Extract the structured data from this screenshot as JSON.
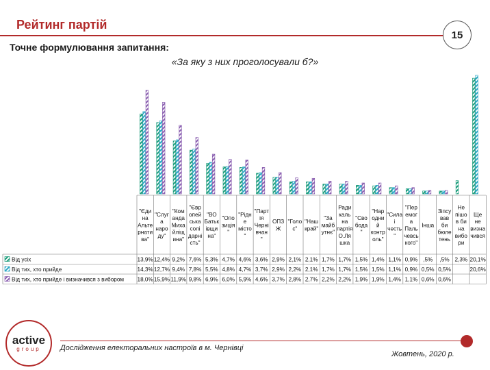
{
  "header": {
    "title": "Рейтинг партій",
    "page_number": "15"
  },
  "question": {
    "label": "Точне формулювання запитання:",
    "text": "«За яку з них проголосували б?»"
  },
  "footer": {
    "logo_main": "active",
    "logo_sub": "group",
    "study": "Дослідження електоральних настроїв в  м. Чернівці",
    "date": "Жовтень, 2020 р."
  },
  "colors": {
    "accent": "#b22a2a",
    "series1": "#1a9c7a",
    "series2": "#2aa6c4",
    "series3": "#8a5fb0"
  },
  "chart_data": {
    "type": "bar",
    "categories": [
      "\"Єдина Альтернатива\"",
      "\"Слуга народу\"",
      "\"Команда Михайліщина\"",
      "\"Європейська солідарність\"",
      "\"ВО Батьківщина\"",
      "\"Опозиція\"",
      "\"Рідне місто\"",
      "\"Партія Чернівчан\"",
      "ОПЗЖ",
      "\"Голос\"",
      "\"Наш край\"",
      "\"За майбутнє\"",
      "Радикальна партія О.Ляшка",
      "\"Свобода\"",
      "\"Народний контроль\"",
      "\"Сила і честь\"",
      "\"Перемога Пальчевського\"",
      "Інша",
      "Зіпсував би бюлетень",
      "Не пішов би на вибори",
      "Ще не визначився"
    ],
    "category_lines": [
      [
        "\"Єди",
        "на",
        "Альте",
        "рнати",
        "ва\""
      ],
      [
        "\"Слуг",
        "а",
        "наро",
        "ду\""
      ],
      [
        "\"Ком",
        "анда",
        "Миха",
        "йліщ",
        "ина\""
      ],
      [
        "\"Євр",
        "опей",
        "ська",
        "солі",
        "дарні",
        "сть\""
      ],
      [
        "\"ВО",
        "Батьк",
        "івщи",
        "на\""
      ],
      [
        "\"Опо",
        "зиція",
        "\""
      ],
      [
        "\"Рідн",
        "е",
        "місто",
        "\""
      ],
      [
        "\"Парт",
        "ія",
        "Черні",
        "вчан",
        "\""
      ],
      [
        "ОПЗ",
        "Ж"
      ],
      [
        "\"Голо",
        "с\""
      ],
      [
        "\"Наш",
        "край\""
      ],
      [
        "\"За",
        "майб",
        "утнє\""
      ],
      [
        "Ради",
        "каль",
        "на",
        "партія",
        "О.Ля",
        "шка"
      ],
      [
        "\"Сво",
        "бода",
        "\""
      ],
      [
        "\"Нар",
        "одни",
        "й",
        "контр",
        "оль\""
      ],
      [
        "\"Сила",
        "і",
        "честь",
        "\""
      ],
      [
        "\"Пер",
        "емог",
        "а",
        "Паль",
        "чевсь",
        "кого\""
      ],
      [
        "Інша"
      ],
      [
        "Зіпсу",
        "вав",
        "би",
        "бюле",
        "тень"
      ],
      [
        "Не",
        "пішо",
        "в би",
        "на",
        "вибо",
        "ри"
      ],
      [
        "Ще",
        "не",
        "визна",
        "чився"
      ]
    ],
    "series": [
      {
        "name": "Від усіх",
        "values": [
          13.9,
          12.4,
          9.2,
          7.6,
          5.3,
          4.7,
          4.6,
          3.6,
          2.9,
          2.1,
          2.1,
          1.7,
          1.7,
          1.5,
          1.4,
          1.1,
          0.9,
          0.5,
          0.5,
          2.3,
          20.1
        ],
        "labels": [
          "13,9%",
          "12,4%",
          "9,2%",
          "7,6%",
          "5,3%",
          "4,7%",
          "4,6%",
          "3,6%",
          "2,9%",
          "2,1%",
          "2,1%",
          "1,7%",
          "1,7%",
          "1,5%",
          "1,4%",
          "1,1%",
          "0,9%",
          ",5%",
          ",5%",
          "2,3%",
          "20,1%"
        ]
      },
      {
        "name": "Від тих, хто прийде",
        "values": [
          14.3,
          12.7,
          9.4,
          7.8,
          5.5,
          4.8,
          4.7,
          3.7,
          2.9,
          2.2,
          2.1,
          1.7,
          1.7,
          1.5,
          1.5,
          1.1,
          0.9,
          0.5,
          0.5,
          null,
          20.6
        ],
        "labels": [
          "14,3%",
          "12,7%",
          "9,4%",
          "7,8%",
          "5,5%",
          "4,8%",
          "4,7%",
          "3,7%",
          "2,9%",
          "2,2%",
          "2,1%",
          "1,7%",
          "1,7%",
          "1,5%",
          "1,5%",
          "1,1%",
          "0,9%",
          "0,5%",
          "0,5%",
          "",
          "20,6%"
        ]
      },
      {
        "name": "Від тих, хто прийде і визначився з вибором",
        "values": [
          18.0,
          15.9,
          11.9,
          9.8,
          6.9,
          6.0,
          5.9,
          4.6,
          3.7,
          2.8,
          2.7,
          2.2,
          2.2,
          1.9,
          1.9,
          1.4,
          1.1,
          0.6,
          0.6,
          null,
          null
        ],
        "labels": [
          "18,0%",
          "15,9%",
          "11,9%",
          "9,8%",
          "6,9%",
          "6,0%",
          "5,9%",
          "4,6%",
          "3,7%",
          "2,8%",
          "2,7%",
          "2,2%",
          "2,2%",
          "1,9%",
          "1,9%",
          "1,4%",
          "1,1%",
          "0,6%",
          "0,6%",
          "",
          ""
        ]
      }
    ],
    "legend_position": "left-of-table"
  }
}
